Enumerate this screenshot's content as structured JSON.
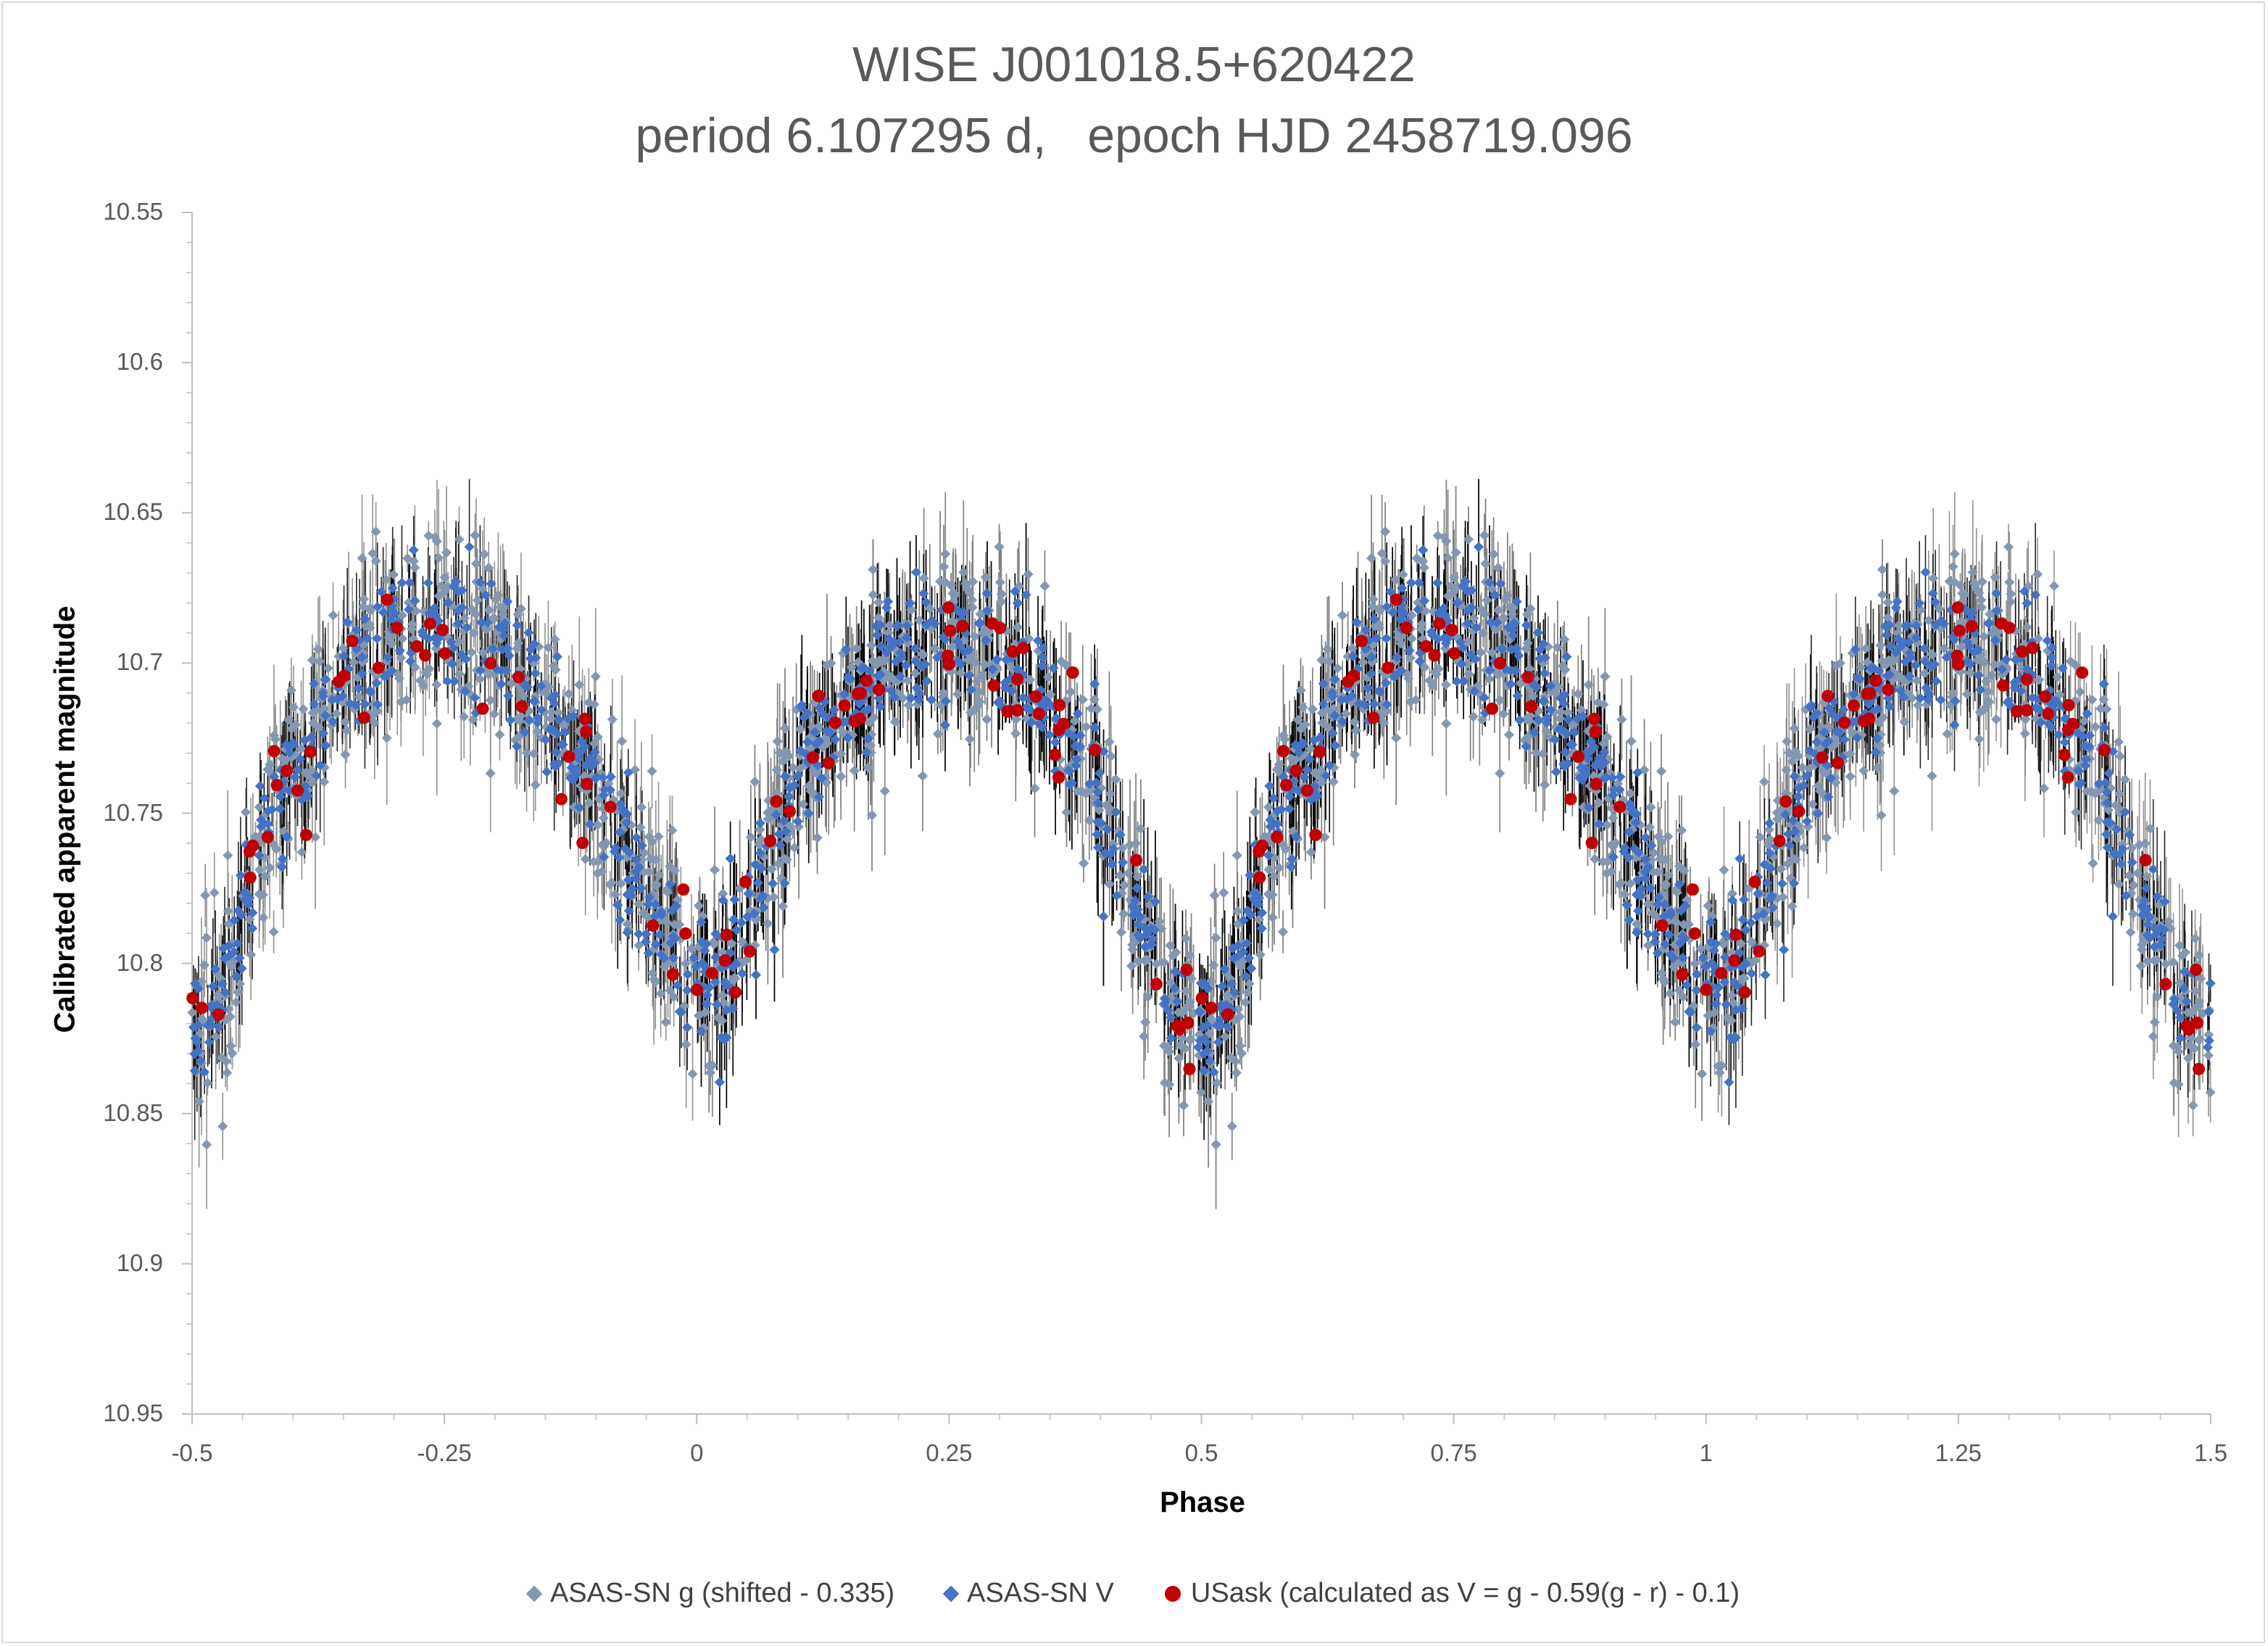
{
  "chart_data": {
    "type": "scatter",
    "title": "WISE J001018.5+620422",
    "subtitle": "period 6.107295 d,   epoch HJD 2458719.096",
    "xlabel": "Phase",
    "ylabel": "Calibrated apparent magnitude",
    "xlim": [
      -0.5,
      1.5
    ],
    "ylim": [
      10.55,
      10.95
    ],
    "y_inverted": true,
    "x_ticks": [
      "-0.5",
      "-0.25",
      "0",
      "0.25",
      "0.5",
      "0.75",
      "1",
      "1.25",
      "1.5"
    ],
    "y_ticks": [
      "10.55",
      "10.6",
      "10.65",
      "10.7",
      "10.75",
      "10.8",
      "10.85",
      "10.9",
      "10.95"
    ],
    "grid": false,
    "legend_position": "bottom",
    "light_curve_model": {
      "phase": [
        0.0,
        0.03,
        0.06,
        0.1,
        0.15,
        0.2,
        0.25,
        0.3,
        0.35,
        0.4,
        0.44,
        0.47,
        0.5,
        0.53,
        0.56,
        0.6,
        0.65,
        0.7,
        0.75,
        0.8,
        0.85,
        0.9,
        0.94,
        0.97,
        1.0
      ],
      "magnitude": [
        10.8,
        10.805,
        10.775,
        10.735,
        10.715,
        10.7,
        10.69,
        10.695,
        10.715,
        10.745,
        10.78,
        10.815,
        10.83,
        10.81,
        10.77,
        10.735,
        10.705,
        10.69,
        10.685,
        10.695,
        10.715,
        10.74,
        10.77,
        10.79,
        10.8
      ]
    },
    "series": [
      {
        "name": "ASAS-SN g (shifted - 0.335)",
        "marker": "diamond",
        "color": "#8497b0",
        "errcolor": "#7f7f7f",
        "n_points": 900,
        "scatter_sigma": 0.016
      },
      {
        "name": "ASAS-SN V",
        "marker": "diamond",
        "color": "#4472c4",
        "errcolor": "#000000",
        "n_points": 650,
        "scatter_sigma": 0.011
      },
      {
        "name": "USask (calculated as V = g - 0.59(g - r) - 0.1)",
        "marker": "circle",
        "color": "#c00000",
        "n_points": 90,
        "scatter_sigma": 0.012
      }
    ]
  }
}
